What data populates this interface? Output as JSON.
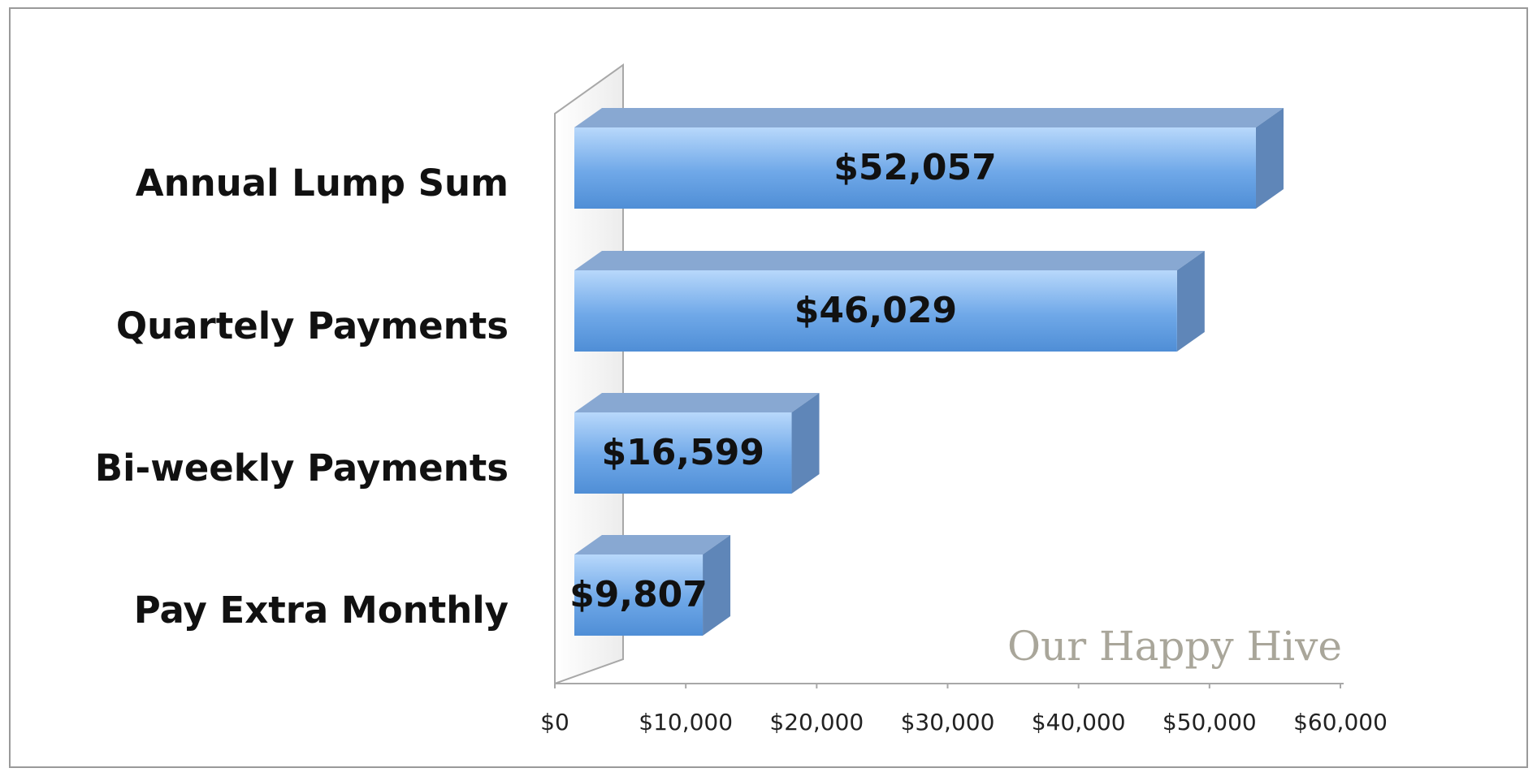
{
  "chart_data": {
    "type": "bar3d_horizontal",
    "categories": [
      "Annual Lump Sum",
      "Quartely Payments",
      "Bi-weekly Payments",
      "Pay Extra Monthly"
    ],
    "values": [
      52057,
      46029,
      16599,
      9807
    ],
    "value_labels": [
      "$52,057",
      "$46,029",
      "$16,599",
      "$9,807"
    ],
    "color": "#6fa8e8",
    "xlim": [
      0,
      60000
    ],
    "xticks": [
      {
        "value": 0,
        "label": "$0"
      },
      {
        "value": 10000,
        "label": "$10,000"
      },
      {
        "value": 20000,
        "label": "$20,000"
      },
      {
        "value": 30000,
        "label": "$30,000"
      },
      {
        "value": 40000,
        "label": "$40,000"
      },
      {
        "value": 50000,
        "label": "$50,000"
      },
      {
        "value": 60000,
        "label": "$60,000"
      }
    ],
    "watermark": "Our Happy Hive"
  }
}
